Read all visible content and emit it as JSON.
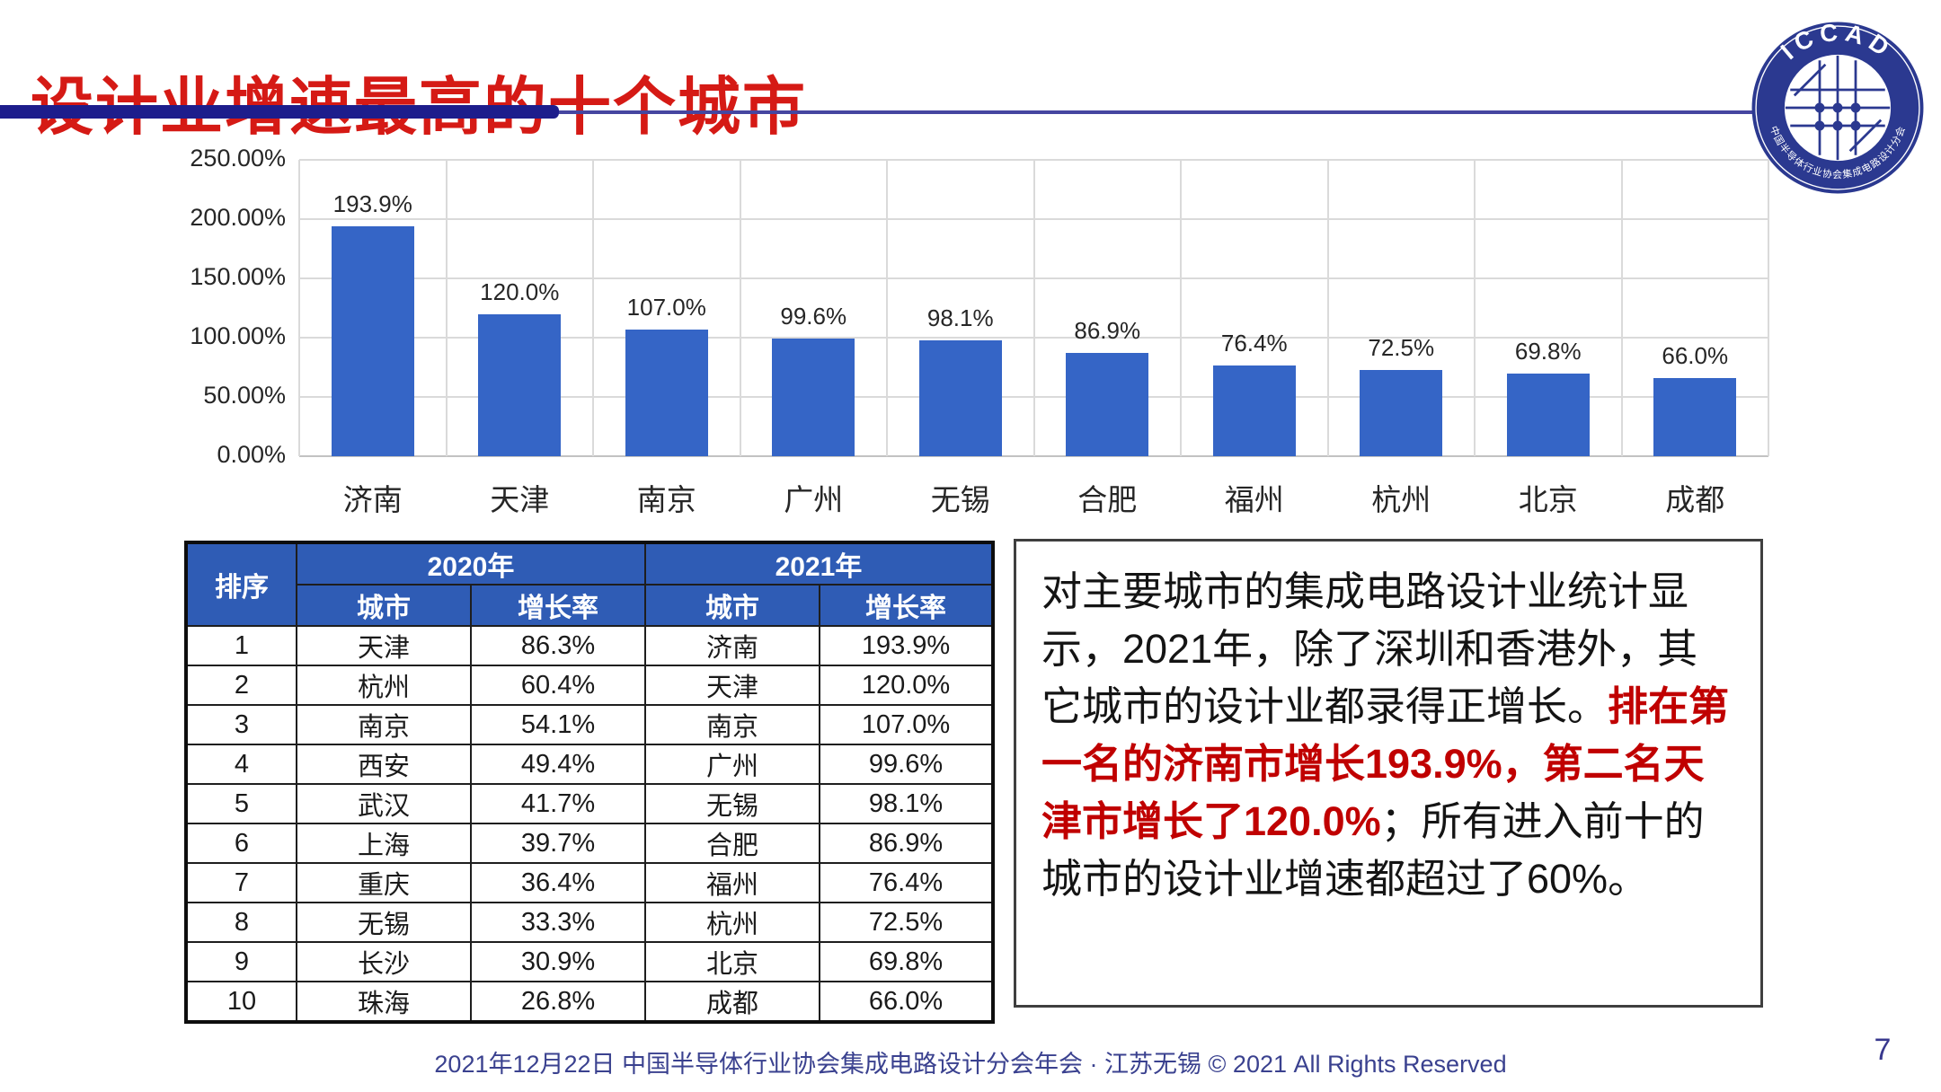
{
  "slide": {
    "title": "设计业增速最高的十个城市",
    "footer": "2021年12月22日 中国半导体行业协会集成电路设计分会年会 · 江苏无锡 © 2021 All Rights Reserved",
    "page_number": "7"
  },
  "logo": {
    "top_text": "ICCAD",
    "bottom_text": "中国半导体行业协会集成电路设计分会"
  },
  "chart_data": {
    "type": "bar",
    "title": "",
    "xlabel": "",
    "ylabel": "",
    "categories": [
      "济南",
      "天津",
      "南京",
      "广州",
      "无锡",
      "合肥",
      "福州",
      "杭州",
      "北京",
      "成都"
    ],
    "values": [
      193.9,
      120.0,
      107.0,
      99.6,
      98.1,
      86.9,
      76.4,
      72.5,
      69.8,
      66.0
    ],
    "data_labels": [
      "193.9%",
      "120.0%",
      "107.0%",
      "99.6%",
      "98.1%",
      "86.9%",
      "76.4%",
      "72.5%",
      "69.8%",
      "66.0%"
    ],
    "ylim": [
      0,
      250
    ],
    "yticks": [
      "250.00%",
      "200.00%",
      "150.00%",
      "100.00%",
      "50.00%",
      "0.00%"
    ],
    "ytick_values": [
      250,
      200,
      150,
      100,
      50,
      0
    ],
    "grid": true,
    "legend": false,
    "bar_color": "#3565C6"
  },
  "table": {
    "col1_header": "排序",
    "group_headers": [
      "2020年",
      "2021年"
    ],
    "sub_headers": [
      "城市",
      "增长率",
      "城市",
      "增长率"
    ],
    "rows": [
      [
        "1",
        "天津",
        "86.3%",
        "济南",
        "193.9%"
      ],
      [
        "2",
        "杭州",
        "60.4%",
        "天津",
        "120.0%"
      ],
      [
        "3",
        "南京",
        "54.1%",
        "南京",
        "107.0%"
      ],
      [
        "4",
        "西安",
        "49.4%",
        "广州",
        "99.6%"
      ],
      [
        "5",
        "武汉",
        "41.7%",
        "无锡",
        "98.1%"
      ],
      [
        "6",
        "上海",
        "39.7%",
        "合肥",
        "86.9%"
      ],
      [
        "7",
        "重庆",
        "36.4%",
        "福州",
        "76.4%"
      ],
      [
        "8",
        "无锡",
        "33.3%",
        "杭州",
        "72.5%"
      ],
      [
        "9",
        "长沙",
        "30.9%",
        "北京",
        "69.8%"
      ],
      [
        "10",
        "珠海",
        "26.8%",
        "成都",
        "66.0%"
      ]
    ]
  },
  "textbox": {
    "segments": [
      {
        "text": "对主要城市的集成电路设计业统计显示，2021年，除了深圳和香港外，其它城市的设计业都录得正增长。",
        "style": "normal"
      },
      {
        "text": "排在第一名的济南市增长193.9%，第二名天津市增长了120.0%",
        "style": "red-bold"
      },
      {
        "text": "；所有进入前十的城市的设计业增速都超过了60%。",
        "style": "normal"
      }
    ]
  },
  "colors": {
    "title_red": "#D51A15",
    "accent_navy": "#1D1D8C",
    "bar_blue": "#3565C6",
    "table_header_blue": "#2F5CB5",
    "emphasis_red": "#C00000",
    "footer_navy": "#3A418F",
    "gridline_gray": "#DADADA"
  }
}
